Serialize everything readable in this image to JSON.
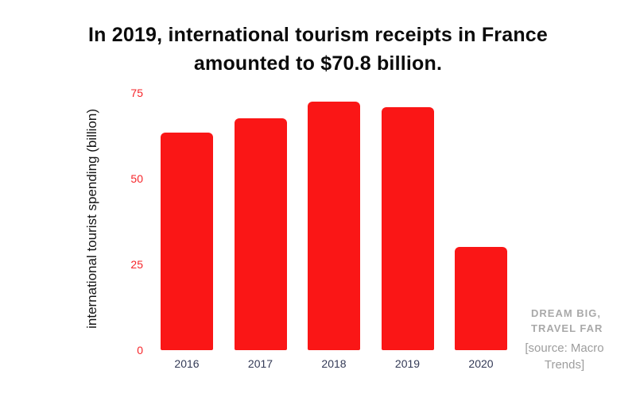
{
  "title": "In 2019, international tourism receipts in France amounted to $70.8 billion.",
  "watermark": {
    "line1": "Dream Big,",
    "line2": "Travel Far"
  },
  "source": "[source: Macro Trends]",
  "colors": {
    "bar": "#fa1616",
    "y_tick": "#f6252a",
    "x_label": "#333a56",
    "title": "#0b0b0b",
    "watermark": "#a9a9a9",
    "source": "#9d9d9d"
  },
  "chart_data": {
    "type": "bar",
    "categories": [
      "2016",
      "2017",
      "2018",
      "2019",
      "2020"
    ],
    "values": [
      63.5,
      67.5,
      72.5,
      70.8,
      30
    ],
    "title": "",
    "xlabel": "",
    "ylabel": "international tourist spending (billion)",
    "yticks": [
      0,
      25,
      50,
      75
    ],
    "ylim": [
      0,
      75
    ],
    "grid": false,
    "legend": "none",
    "bar_color": "#fa1616"
  }
}
